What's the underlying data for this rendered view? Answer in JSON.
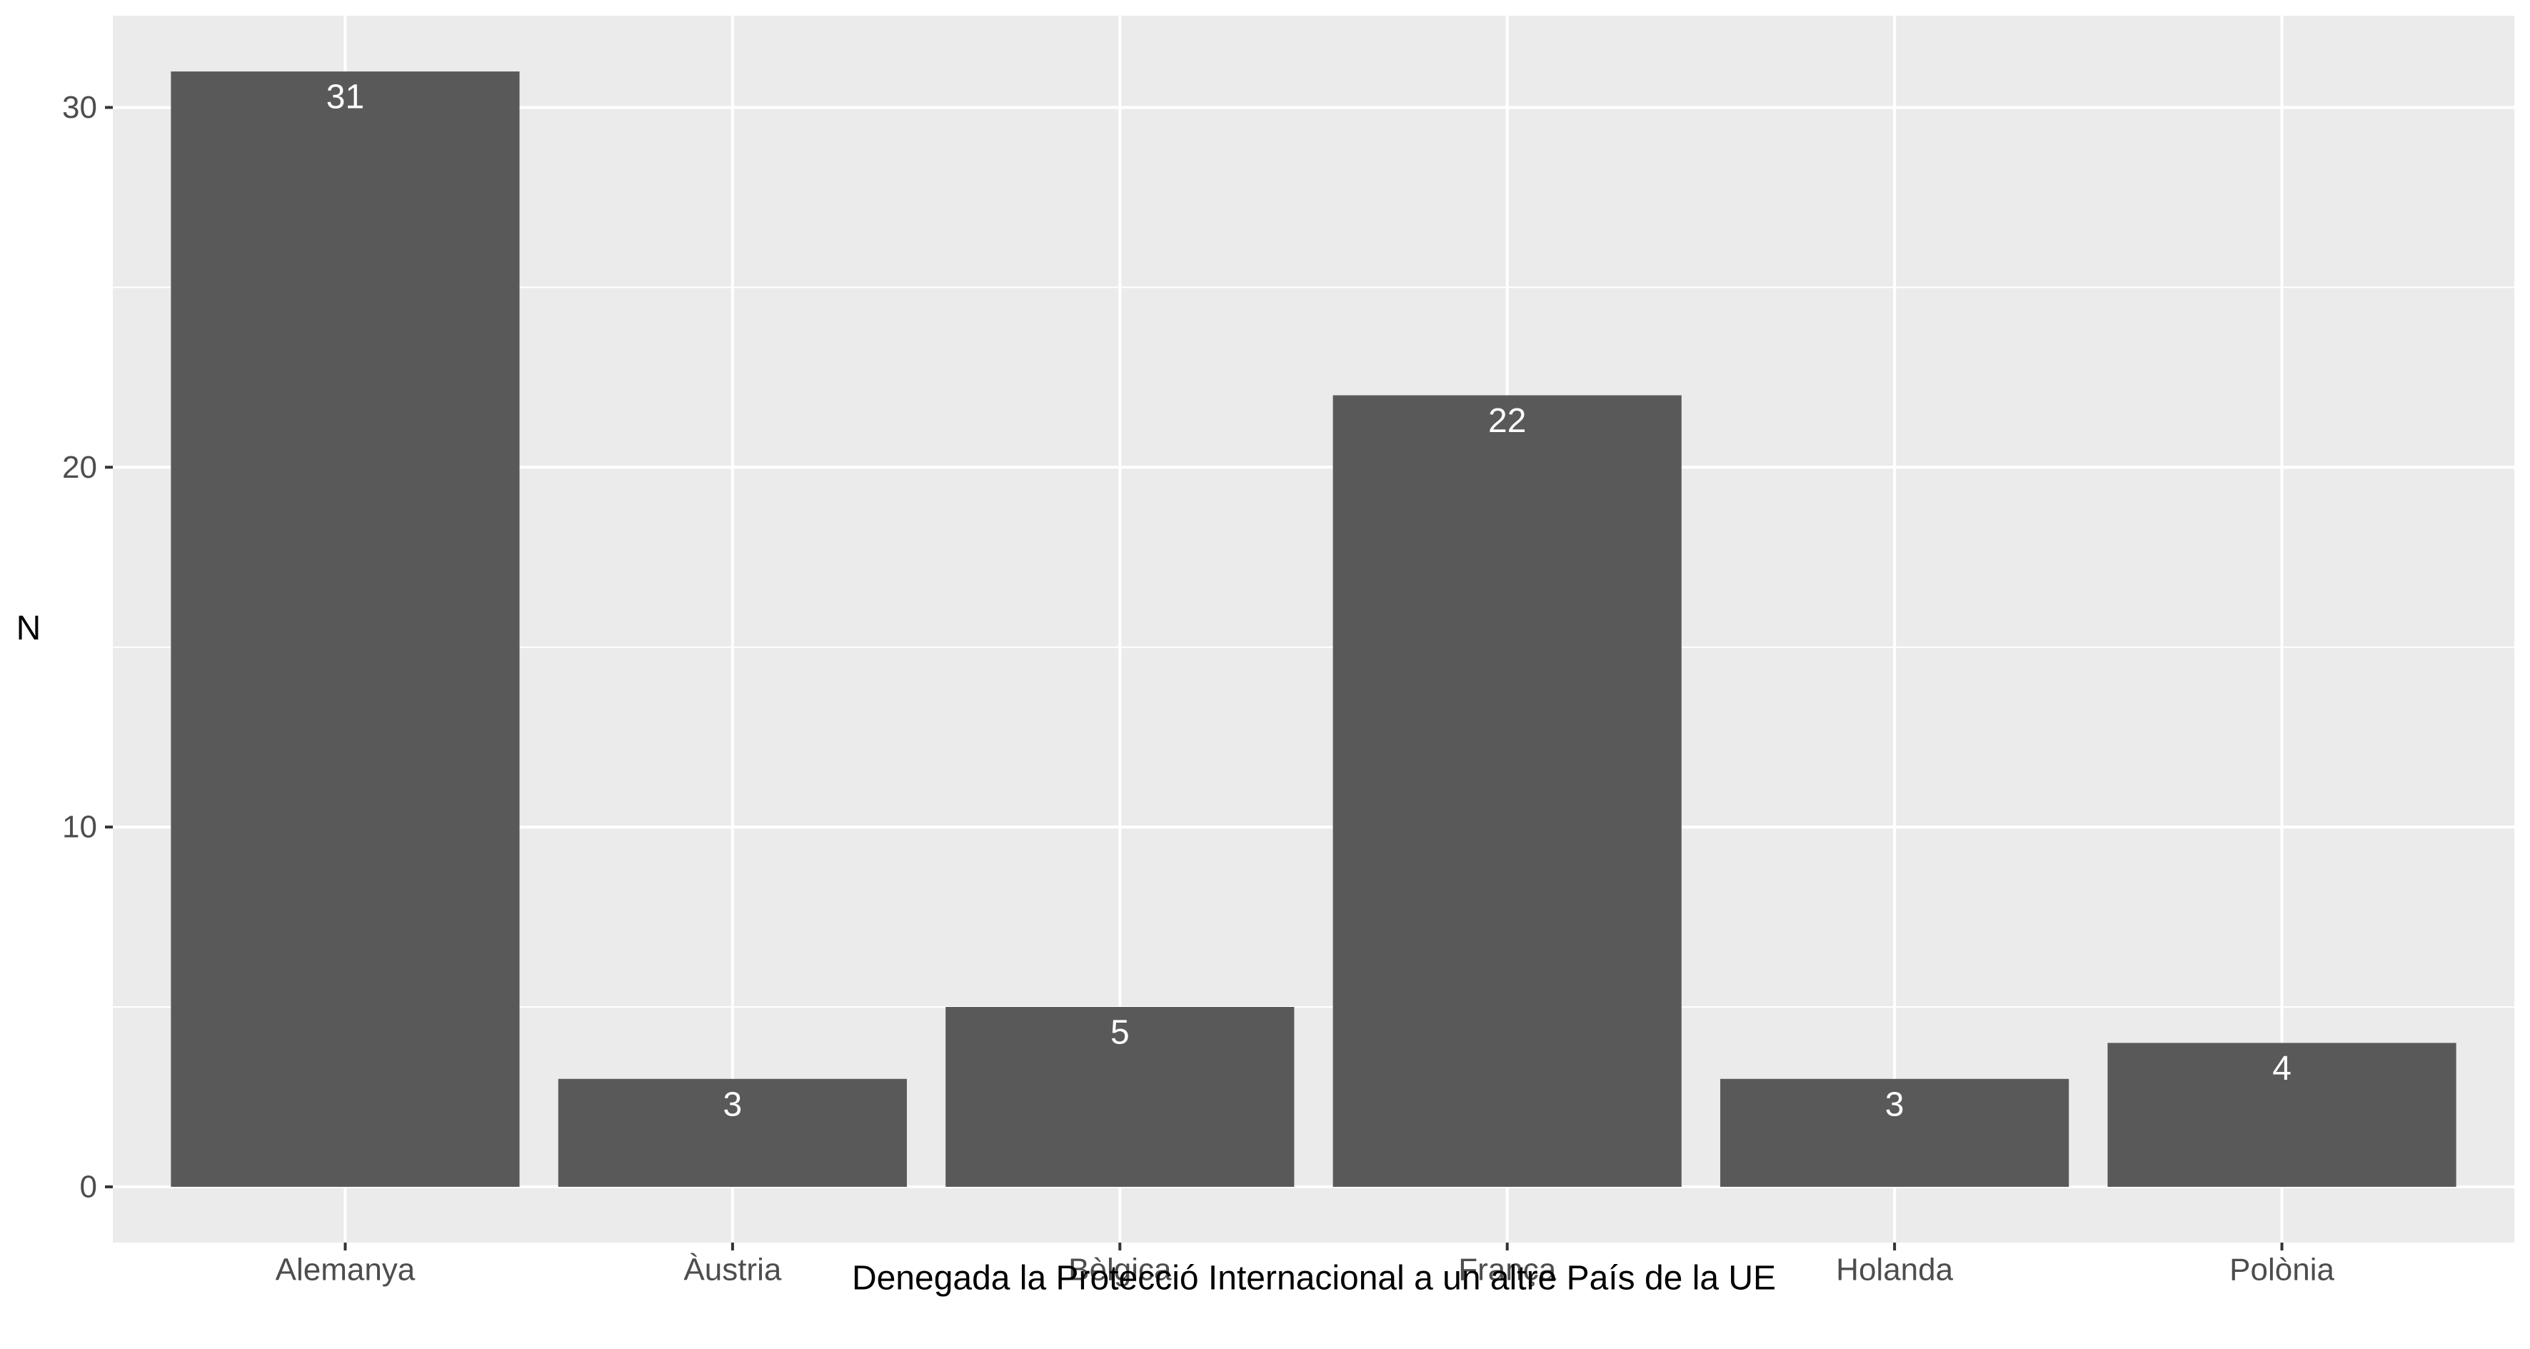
{
  "chart_data": {
    "type": "bar",
    "categories": [
      "Alemanya",
      "Àustria",
      "Bèlgica",
      "França",
      "Holanda",
      "Polònia"
    ],
    "values": [
      31,
      3,
      5,
      22,
      3,
      4
    ],
    "data_labels": [
      "31",
      "3",
      "5",
      "22",
      "3",
      "4"
    ],
    "xlabel": "Denegada la Protecció Internacional a un altre País de la UE",
    "ylabel": "N",
    "ylim": [
      -1.55,
      32.55
    ],
    "yticks": [
      0,
      10,
      20,
      30
    ],
    "grid": true,
    "legend": "none",
    "colors": {
      "panel_background": "#ebebeb",
      "grid": "#ffffff",
      "bar": "#595959",
      "data_label": "#ffffff",
      "tick_label": "#4d4d4d",
      "axis_title": "#000000"
    }
  }
}
